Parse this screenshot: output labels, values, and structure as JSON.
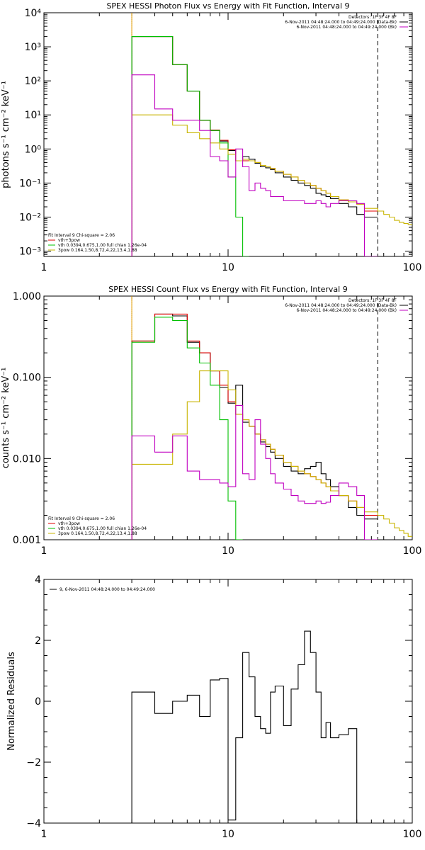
{
  "chart_data": [
    {
      "type": "line",
      "title": "SPEX HESSI Photon Flux vs Energy with Fit Function, Interval 9",
      "ylabel": "photons s⁻¹ cm⁻² keV⁻¹",
      "xlabel": "",
      "xscale": "log",
      "yscale": "log",
      "xlim": [
        1,
        100
      ],
      "ylim": [
        0.0007,
        10000
      ],
      "xticks": [
        1,
        10,
        100
      ],
      "xtick_labels": [
        "1",
        "10",
        "100"
      ],
      "yticks": [
        0.001,
        0.01,
        0.1,
        1,
        10,
        100,
        1000,
        10000
      ],
      "ytick_labels": [
        "10⁻³",
        "10⁻²",
        "10⁻¹",
        "10⁰",
        "10¹",
        "10²",
        "10³",
        "10⁴"
      ],
      "legend_top": [
        "Detectors: 1F 3F 4F 8F",
        "6-Nov-2011 04:48:24.000 to 04:49:24.000 (Data-Bk)",
        "6-Nov-2011 04:48:24.000 to 04:49:24.000 (Bk)"
      ],
      "legend_top_colors": [
        "#000000",
        "#c000c0"
      ],
      "legend_bottom": [
        "Fit Interval 9   Chi-square = 2.06",
        "vth+3pow",
        "vth 0.0394,0.675,1.00  full chian 1.26e-04",
        "3pow 0.164,1.50,8.72,4.22,13.4,1.88"
      ],
      "legend_bottom_colors": [
        "#e00000",
        "#00c000",
        "#c8b400"
      ],
      "vlines": [
        {
          "x": 3,
          "style": "dotted",
          "color": "#000000"
        },
        {
          "x": 3,
          "style": "solid",
          "color": "#e8a000"
        },
        {
          "x": 65,
          "style": "dashed",
          "color": "#000000"
        }
      ],
      "edges": [
        3,
        4,
        5,
        6,
        7,
        8,
        9,
        10,
        11,
        12,
        13,
        14,
        15,
        16,
        17,
        18,
        20,
        22,
        24,
        26,
        28,
        30,
        32,
        34,
        36,
        40,
        45,
        50,
        55,
        65
      ],
      "series": [
        {
          "color": "#000000",
          "x_from": 3,
          "values": [
            2000,
            2000,
            300,
            50,
            7,
            3.5,
            1.7,
            0.9,
            0.45,
            0.6,
            0.5,
            0.38,
            0.3,
            0.28,
            0.25,
            0.2,
            0.15,
            0.12,
            0.1,
            0.085,
            0.07,
            0.05,
            0.045,
            0.04,
            0.035,
            0.025,
            0.02,
            0.012,
            0.01
          ]
        },
        {
          "color": "#e00000",
          "x_from": 3,
          "values": [
            2000,
            2000,
            300,
            50,
            7,
            3.6,
            1.8,
            0.95,
            0.45,
            0.45,
            0.45,
            0.4,
            0.33,
            0.3,
            0.27,
            0.22,
            0.18,
            0.15,
            0.12,
            0.1,
            0.085,
            0.07,
            0.06,
            0.05,
            0.04,
            0.032,
            0.028,
            0.024,
            0.015
          ]
        },
        {
          "color": "#00c000",
          "x_from": 3,
          "values": [
            2000,
            2000,
            300,
            50,
            7,
            3.5,
            1.5,
            0.15,
            0.01,
            0.0005
          ]
        },
        {
          "color": "#c8b400",
          "x_from": 3,
          "values": [
            10,
            10,
            5,
            3,
            2,
            1.5,
            1,
            0.7,
            0.45,
            0.5,
            0.45,
            0.4,
            0.33,
            0.3,
            0.27,
            0.22,
            0.18,
            0.15,
            0.12,
            0.1,
            0.085,
            0.07,
            0.06,
            0.05,
            0.04,
            0.032,
            0.028,
            0.024,
            0.018,
            0.015,
            0.012,
            0.01,
            0.008,
            0.007,
            0.0065,
            0.006
          ],
          "x_edges_override": [
            3,
            4,
            5,
            6,
            7,
            8,
            9,
            10,
            11,
            12,
            13,
            14,
            15,
            16,
            17,
            18,
            20,
            22,
            24,
            26,
            28,
            30,
            32,
            34,
            36,
            40,
            45,
            50,
            55,
            65,
            70,
            75,
            80,
            85,
            90,
            95,
            100
          ]
        },
        {
          "color": "#c000c0",
          "x_from": 3,
          "values": [
            150,
            15,
            7,
            7,
            3.5,
            0.6,
            0.45,
            0.15,
            1,
            0.3,
            0.06,
            0.1,
            0.07,
            0.06,
            0.04,
            0.04,
            0.03,
            0.03,
            0.03,
            0.025,
            0.025,
            0.03,
            0.025,
            0.02,
            0.025,
            0.03,
            0.03,
            0.025,
            0.0005
          ]
        }
      ]
    },
    {
      "type": "line",
      "title": "SPEX HESSI Count Flux vs Energy with Fit Function, Interval 9",
      "ylabel": "counts s⁻¹ cm⁻² keV⁻¹",
      "xlabel": "",
      "xscale": "log",
      "yscale": "log",
      "xlim": [
        1,
        100
      ],
      "ylim": [
        0.001,
        1.0
      ],
      "xticks": [
        1,
        10,
        100
      ],
      "xtick_labels": [
        "1",
        "10",
        "100"
      ],
      "yticks": [
        0.001,
        0.01,
        0.1,
        1.0
      ],
      "ytick_labels": [
        "0.001",
        "0.010",
        "0.100",
        "1.000"
      ],
      "legend_top": [
        "Detectors: 1F 3F 4F 8F",
        "6-Nov-2011 04:48:24.000 to 04:49:24.000 (Data-Bk)",
        "6-Nov-2011 04:48:24.000 to 04:49:24.000 (Bk)"
      ],
      "legend_top_colors": [
        "#000000",
        "#c000c0"
      ],
      "legend_bottom": [
        "Fit Interval 9   Chi-square = 2.06",
        "vth+3pow",
        "vth 0.0394,0.675,1.00  full chian 1.26e-04",
        "3pow 0.164,1.50,8.72,4.22,13.4,1.88"
      ],
      "legend_bottom_colors": [
        "#e00000",
        "#00c000",
        "#c8b400"
      ],
      "vlines": [
        {
          "x": 3,
          "style": "dotted",
          "color": "#000000"
        },
        {
          "x": 3,
          "style": "solid",
          "color": "#e8a000"
        },
        {
          "x": 65,
          "style": "dashed",
          "color": "#000000"
        }
      ],
      "edges": [
        3,
        4,
        5,
        6,
        7,
        8,
        9,
        10,
        11,
        12,
        13,
        14,
        15,
        16,
        17,
        18,
        20,
        22,
        24,
        26,
        28,
        30,
        32,
        34,
        36,
        40,
        45,
        50,
        55,
        65
      ],
      "series": [
        {
          "color": "#000000",
          "x_from": 3,
          "values": [
            0.28,
            0.6,
            0.57,
            0.27,
            0.2,
            0.12,
            0.075,
            0.048,
            0.08,
            0.028,
            0.025,
            0.02,
            0.016,
            0.014,
            0.012,
            0.01,
            0.008,
            0.007,
            0.0065,
            0.0075,
            0.008,
            0.009,
            0.0065,
            0.0055,
            0.0045,
            0.0035,
            0.0025,
            0.002,
            0.0018
          ]
        },
        {
          "color": "#e00000",
          "x_from": 3,
          "values": [
            0.28,
            0.6,
            0.6,
            0.28,
            0.2,
            0.12,
            0.08,
            0.05,
            0.035,
            0.03,
            0.025,
            0.02,
            0.017,
            0.015,
            0.013,
            0.011,
            0.009,
            0.008,
            0.007,
            0.0065,
            0.006,
            0.0055,
            0.005,
            0.0045,
            0.004,
            0.0035,
            0.003,
            0.0025,
            0.002
          ]
        },
        {
          "color": "#00c000",
          "x_from": 3,
          "values": [
            0.27,
            0.55,
            0.5,
            0.23,
            0.15,
            0.08,
            0.03,
            0.003,
            0.0005
          ]
        },
        {
          "color": "#c8b400",
          "x_from": 3,
          "values": [
            0.0085,
            0.0085,
            0.02,
            0.05,
            0.12,
            0.12,
            0.12,
            0.07,
            0.035,
            0.03,
            0.025,
            0.02,
            0.017,
            0.015,
            0.013,
            0.011,
            0.009,
            0.008,
            0.007,
            0.0065,
            0.006,
            0.0055,
            0.005,
            0.0045,
            0.004,
            0.0035,
            0.003,
            0.0025,
            0.0022,
            0.002,
            0.0018,
            0.0016,
            0.0014,
            0.0013,
            0.0012,
            0.0011
          ],
          "x_edges_override": [
            3,
            4,
            5,
            6,
            7,
            8,
            9,
            10,
            11,
            12,
            13,
            14,
            15,
            16,
            17,
            18,
            20,
            22,
            24,
            26,
            28,
            30,
            32,
            34,
            36,
            40,
            45,
            50,
            55,
            65,
            70,
            75,
            80,
            85,
            90,
            95,
            100
          ]
        },
        {
          "color": "#c000c0",
          "x_from": 3,
          "values": [
            0.019,
            0.012,
            0.019,
            0.007,
            0.0055,
            0.0055,
            0.005,
            0.0045,
            0.045,
            0.0065,
            0.0055,
            0.03,
            0.015,
            0.01,
            0.0065,
            0.005,
            0.0042,
            0.0035,
            0.003,
            0.0028,
            0.0028,
            0.003,
            0.0028,
            0.0029,
            0.0035,
            0.005,
            0.0045,
            0.0035,
            0.0005
          ]
        }
      ]
    },
    {
      "type": "line",
      "title": "",
      "ylabel": "Normalized Residuals",
      "xlabel": "",
      "xscale": "log",
      "yscale": "linear",
      "xlim": [
        1,
        100
      ],
      "ylim": [
        -4,
        4
      ],
      "xticks": [
        1,
        10,
        100
      ],
      "xtick_labels": [
        "1",
        "10",
        "100"
      ],
      "yticks": [
        -4,
        -2,
        0,
        2,
        4
      ],
      "ytick_labels": [
        "−4",
        "−2",
        "0",
        "2",
        "4"
      ],
      "legend_top": [
        "9,  6-Nov-2011 04:48:24.000 to 04:49:24.000"
      ],
      "legend_top_colors": [
        "#000000"
      ],
      "legend_bottom": [],
      "legend_bottom_colors": [],
      "vlines": [],
      "edges": [
        3,
        4,
        5,
        6,
        7,
        8,
        9,
        10,
        11,
        12,
        13,
        14,
        15,
        16,
        17,
        18,
        20,
        22,
        24,
        26,
        28,
        30,
        32,
        34,
        36,
        40,
        45,
        50,
        55,
        65
      ],
      "series": [
        {
          "color": "#000000",
          "x_from": 3,
          "values": [
            0.3,
            -0.4,
            0.0,
            0.2,
            -0.5,
            0.7,
            0.75,
            -3.9,
            -1.2,
            1.6,
            0.8,
            -0.5,
            -0.9,
            -1.05,
            0.3,
            0.5,
            -0.8,
            0.4,
            1.2,
            2.3,
            1.6,
            0.3,
            -1.2,
            -0.7,
            -1.2,
            -1.1,
            -0.9
          ]
        }
      ]
    }
  ]
}
